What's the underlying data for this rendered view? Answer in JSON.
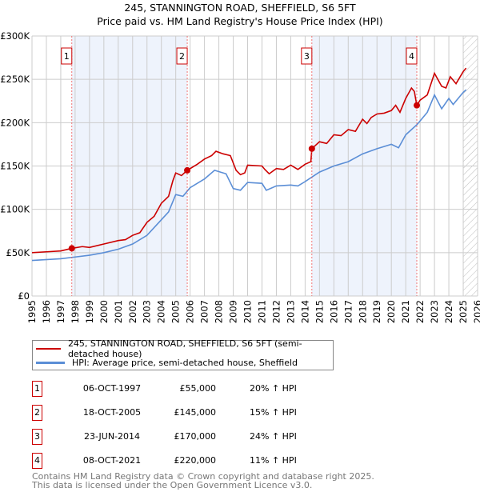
{
  "chart_data": {
    "type": "line",
    "title": "245, STANNINGTON ROAD, SHEFFIELD, S6 5FT",
    "subtitle": "Price paid vs. HM Land Registry's House Price Index (HPI)",
    "xlim": [
      1995,
      2026
    ],
    "ylim": [
      0,
      300000
    ],
    "yticks": [
      0,
      50000,
      100000,
      150000,
      200000,
      250000,
      300000
    ],
    "ytick_labels": [
      "£0",
      "£50K",
      "£100K",
      "£150K",
      "£200K",
      "£250K",
      "£300K"
    ],
    "xticks": [
      "1995",
      "1996",
      "1997",
      "1998",
      "1999",
      "2000",
      "2001",
      "2002",
      "2003",
      "2004",
      "2005",
      "2006",
      "2007",
      "2008",
      "2009",
      "2010",
      "2011",
      "2012",
      "2013",
      "2014",
      "2015",
      "2016",
      "2017",
      "2018",
      "2019",
      "2020",
      "2021",
      "2022",
      "2023",
      "2024",
      "2025",
      "2026"
    ],
    "grid": true,
    "shaded_ranges": [
      [
        1997.77,
        2005.8
      ],
      [
        2014.47,
        2021.77
      ]
    ],
    "forecast_hatch_from": 2025.0,
    "series": [
      {
        "name": "245, STANNINGTON ROAD, SHEFFIELD, S6 5FT (semi-detached house)",
        "color": "#cc0000",
        "x": [
          1995,
          1996,
          1997,
          1997.77,
          1998.5,
          1999,
          2000,
          2001,
          2001.5,
          2002,
          2002.5,
          2003,
          2003.5,
          2004,
          2004.5,
          2004.8,
          2005,
          2005.4,
          2005.8,
          2006.5,
          2007,
          2007.5,
          2007.8,
          2008.3,
          2008.8,
          2009.2,
          2009.5,
          2009.8,
          2010,
          2011,
          2011.2,
          2011.5,
          2012,
          2012.5,
          2013,
          2013.5,
          2014,
          2014.4,
          2014.47,
          2015,
          2015.5,
          2016,
          2016.5,
          2017,
          2017.5,
          2018,
          2018.3,
          2018.6,
          2019,
          2019.5,
          2020,
          2020.3,
          2020.6,
          2021,
          2021.4,
          2021.6,
          2021.77,
          2022,
          2022.5,
          2023,
          2023.5,
          2023.8,
          2024.1,
          2024.5,
          2025,
          2025.2
        ],
        "y": [
          50000,
          51000,
          52000,
          55000,
          57000,
          56000,
          60000,
          64000,
          65000,
          70000,
          73000,
          85000,
          92000,
          107000,
          115000,
          133000,
          142000,
          139000,
          145000,
          152000,
          158000,
          162000,
          167000,
          164000,
          162000,
          145000,
          140000,
          142000,
          151000,
          150000,
          146000,
          141000,
          147000,
          146000,
          151000,
          146000,
          152000,
          155000,
          170000,
          178000,
          176000,
          186000,
          185000,
          192000,
          190000,
          204000,
          199000,
          206000,
          210000,
          211000,
          214000,
          220000,
          212000,
          228000,
          240000,
          236000,
          220000,
          226000,
          232000,
          257000,
          242000,
          240000,
          253000,
          245000,
          259000,
          263000
        ]
      },
      {
        "name": "HPI: Average price, semi-detached house, Sheffield",
        "color": "#5b8ed6",
        "x": [
          1995,
          1997,
          1998,
          1999,
          2000,
          2001,
          2002,
          2003,
          2004,
          2004.5,
          2005,
          2005.5,
          2006,
          2007,
          2007.7,
          2008.5,
          2009,
          2009.5,
          2010,
          2011,
          2011.3,
          2012,
          2013,
          2013.5,
          2014,
          2015,
          2016,
          2017,
          2018,
          2019,
          2020,
          2020.5,
          2021,
          2021.8,
          2022.5,
          2023,
          2023.5,
          2024,
          2024.3,
          2025,
          2025.2
        ],
        "y": [
          41000,
          43000,
          45000,
          47000,
          50000,
          54000,
          60000,
          70000,
          88000,
          97000,
          117000,
          115000,
          125000,
          135000,
          145000,
          141000,
          124000,
          122000,
          131000,
          130000,
          122000,
          127000,
          128000,
          127000,
          132000,
          143000,
          150000,
          155000,
          164000,
          170000,
          175000,
          171000,
          186000,
          198000,
          212000,
          232000,
          216000,
          228000,
          221000,
          235000,
          238000
        ]
      }
    ],
    "sales": [
      {
        "label": "1",
        "x": 1997.77,
        "y": 55000
      },
      {
        "label": "2",
        "x": 2005.8,
        "y": 145000
      },
      {
        "label": "3",
        "x": 2014.47,
        "y": 170000
      },
      {
        "label": "4",
        "x": 2021.77,
        "y": 220000
      }
    ]
  },
  "legend": {
    "property": "245, STANNINGTON ROAD, SHEFFIELD, S6 5FT (semi-detached house)",
    "hpi": "HPI: Average price, semi-detached house, Sheffield"
  },
  "transactions": [
    {
      "num": "1",
      "date": "06-OCT-1997",
      "price": "£55,000",
      "hpi": "20% ↑ HPI"
    },
    {
      "num": "2",
      "date": "18-OCT-2005",
      "price": "£145,000",
      "hpi": "15% ↑ HPI"
    },
    {
      "num": "3",
      "date": "23-JUN-2014",
      "price": "£170,000",
      "hpi": "24% ↑ HPI"
    },
    {
      "num": "4",
      "date": "08-OCT-2021",
      "price": "£220,000",
      "hpi": "11% ↑ HPI"
    }
  ],
  "footer": {
    "line1": "Contains HM Land Registry data © Crown copyright and database right 2025.",
    "line2": "This data is licensed under the Open Government Licence v3.0."
  }
}
